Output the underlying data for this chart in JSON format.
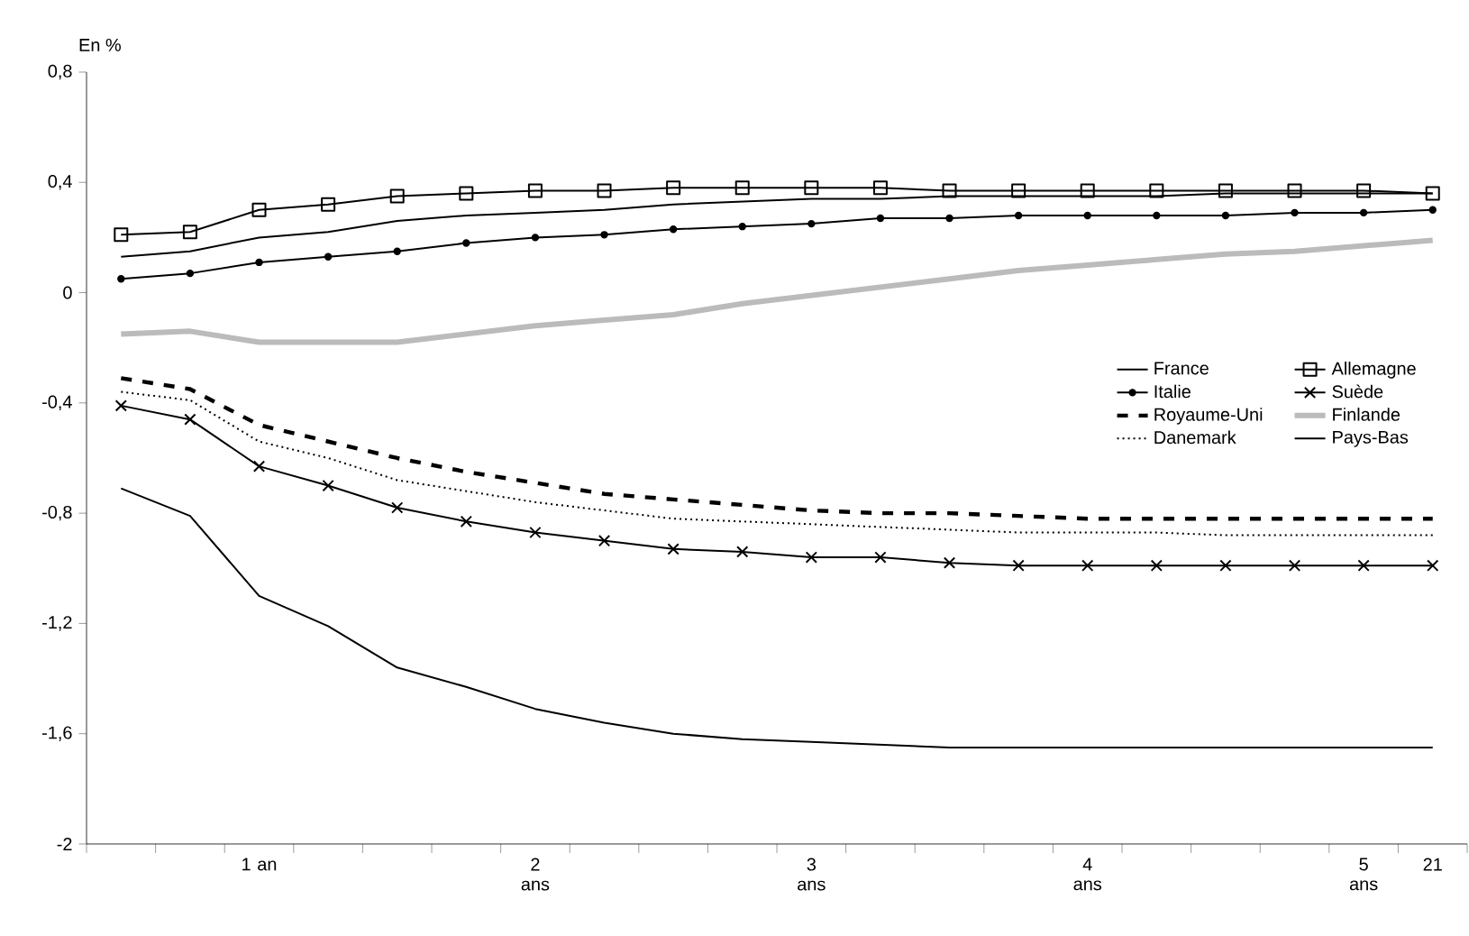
{
  "chart_data": {
    "type": "line",
    "ylabel": "En %",
    "categories": [
      null,
      null,
      "1 an",
      null,
      null,
      null,
      "2 ans",
      null,
      null,
      null,
      "3 ans",
      null,
      null,
      null,
      "4 ans",
      null,
      null,
      null,
      "5 ans",
      "21"
    ],
    "ylim": [
      -2,
      0.8
    ],
    "yticks": [
      {
        "value": -2,
        "label": "-2"
      },
      {
        "value": -1.6,
        "label": "-1,6"
      },
      {
        "value": -1.2,
        "label": "-1,2"
      },
      {
        "value": -0.8,
        "label": "-0,8"
      },
      {
        "value": -0.4,
        "label": "-0,4"
      },
      {
        "value": 0,
        "label": "0"
      },
      {
        "value": 0.4,
        "label": "0,4"
      },
      {
        "value": 0.8,
        "label": "0,8"
      }
    ],
    "grid": false,
    "legend": "right",
    "series": [
      {
        "name": "France",
        "color": "#000000",
        "marker": "none",
        "line_style": "solid",
        "values": [
          0.13,
          0.15,
          0.2,
          0.22,
          0.26,
          0.28,
          0.29,
          0.3,
          0.32,
          0.33,
          0.34,
          0.34,
          0.35,
          0.35,
          0.35,
          0.35,
          0.36,
          0.36,
          0.36,
          0.36
        ]
      },
      {
        "name": "Allemagne",
        "color": "#000000",
        "marker": "square",
        "line_style": "solid",
        "values": [
          0.21,
          0.22,
          0.3,
          0.32,
          0.35,
          0.36,
          0.37,
          0.37,
          0.38,
          0.38,
          0.38,
          0.38,
          0.37,
          0.37,
          0.37,
          0.37,
          0.37,
          0.37,
          0.37,
          0.36
        ]
      },
      {
        "name": "Italie",
        "color": "#000000",
        "marker": "circle",
        "line_style": "solid",
        "values": [
          0.05,
          0.07,
          0.11,
          0.13,
          0.15,
          0.18,
          0.2,
          0.21,
          0.23,
          0.24,
          0.25,
          0.27,
          0.27,
          0.28,
          0.28,
          0.28,
          0.28,
          0.29,
          0.29,
          0.3
        ]
      },
      {
        "name": "Suède",
        "color": "#000000",
        "marker": "cross",
        "line_style": "solid",
        "values": [
          -0.41,
          -0.46,
          -0.63,
          -0.7,
          -0.78,
          -0.83,
          -0.87,
          -0.9,
          -0.93,
          -0.94,
          -0.96,
          -0.96,
          -0.98,
          -0.99,
          -0.99,
          -0.99,
          -0.99,
          -0.99,
          -0.99,
          -0.99
        ]
      },
      {
        "name": "Royaume-Uni",
        "color": "#000000",
        "marker": "none",
        "line_style": "dashed",
        "values": [
          -0.31,
          -0.35,
          -0.48,
          -0.54,
          -0.6,
          -0.65,
          -0.69,
          -0.73,
          -0.75,
          -0.77,
          -0.79,
          -0.8,
          -0.8,
          -0.81,
          -0.82,
          -0.82,
          -0.82,
          -0.82,
          -0.82,
          -0.82
        ]
      },
      {
        "name": "Finlande",
        "color": "#bbbbbb",
        "marker": "none",
        "line_style": "solid",
        "values": [
          -0.15,
          -0.14,
          -0.18,
          -0.18,
          -0.18,
          -0.15,
          -0.12,
          -0.1,
          -0.08,
          -0.04,
          -0.01,
          0.02,
          0.05,
          0.08,
          0.1,
          0.12,
          0.14,
          0.15,
          0.17,
          0.19
        ]
      },
      {
        "name": "Danemark",
        "color": "#000000",
        "marker": "none",
        "line_style": "dotted",
        "values": [
          -0.36,
          -0.39,
          -0.54,
          -0.6,
          -0.68,
          -0.72,
          -0.76,
          -0.79,
          -0.82,
          -0.83,
          -0.84,
          -0.85,
          -0.86,
          -0.87,
          -0.87,
          -0.87,
          -0.88,
          -0.88,
          -0.88,
          -0.88
        ]
      },
      {
        "name": "Pays-Bas",
        "color": "#000000",
        "marker": "none",
        "line_style": "solid",
        "values": [
          -0.71,
          -0.81,
          -1.1,
          -1.21,
          -1.36,
          -1.43,
          -1.51,
          -1.56,
          -1.6,
          -1.62,
          -1.63,
          -1.64,
          -1.65,
          -1.65,
          -1.65,
          -1.65,
          -1.65,
          -1.65,
          -1.65,
          -1.65
        ]
      }
    ]
  }
}
